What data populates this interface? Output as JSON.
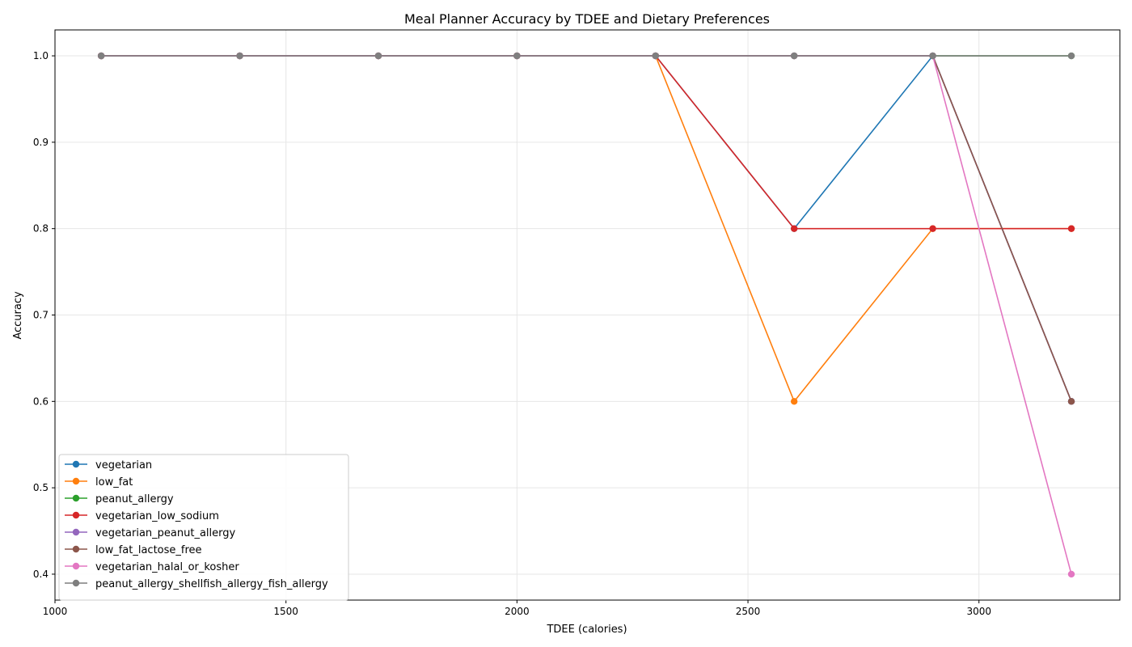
{
  "chart_data": {
    "type": "line",
    "title": "Meal Planner Accuracy by TDEE and Dietary Preferences",
    "xlabel": "TDEE (calories)",
    "ylabel": "Accuracy",
    "xlim": [
      1000,
      3305
    ],
    "ylim": [
      0.37,
      1.03
    ],
    "xticks": [
      1000,
      1500,
      2000,
      2500,
      3000
    ],
    "yticks": [
      0.4,
      0.5,
      0.6,
      0.7,
      0.8,
      0.9,
      1.0
    ],
    "grid": true,
    "legend_position": "lower-left",
    "x": [
      1100,
      1400,
      1700,
      2000,
      2300,
      2600,
      2900,
      3200
    ],
    "series": [
      {
        "name": "vegetarian",
        "color": "#1f77b4",
        "values": [
          1.0,
          1.0,
          1.0,
          1.0,
          1.0,
          0.8,
          1.0,
          0.6
        ]
      },
      {
        "name": "low_fat",
        "color": "#ff7f0e",
        "values": [
          1.0,
          1.0,
          1.0,
          1.0,
          1.0,
          0.6,
          0.8,
          0.8
        ]
      },
      {
        "name": "peanut_allergy",
        "color": "#2ca02c",
        "values": [
          1.0,
          1.0,
          1.0,
          1.0,
          1.0,
          1.0,
          1.0,
          1.0
        ]
      },
      {
        "name": "vegetarian_low_sodium",
        "color": "#d62728",
        "values": [
          1.0,
          1.0,
          1.0,
          1.0,
          1.0,
          0.8,
          0.8,
          0.8
        ]
      },
      {
        "name": "vegetarian_peanut_allergy",
        "color": "#9467bd",
        "values": [
          1.0,
          1.0,
          1.0,
          1.0,
          1.0,
          1.0,
          1.0,
          0.6
        ]
      },
      {
        "name": "low_fat_lactose_free",
        "color": "#8c564b",
        "values": [
          1.0,
          1.0,
          1.0,
          1.0,
          1.0,
          1.0,
          1.0,
          0.6
        ]
      },
      {
        "name": "vegetarian_halal_or_kosher",
        "color": "#e377c2",
        "values": [
          1.0,
          1.0,
          1.0,
          1.0,
          1.0,
          1.0,
          1.0,
          0.4
        ]
      },
      {
        "name": "peanut_allergy_shellfish_allergy_fish_allergy",
        "color": "#7f7f7f",
        "values": [
          1.0,
          1.0,
          1.0,
          1.0,
          1.0,
          1.0,
          1.0,
          1.0
        ]
      }
    ]
  }
}
